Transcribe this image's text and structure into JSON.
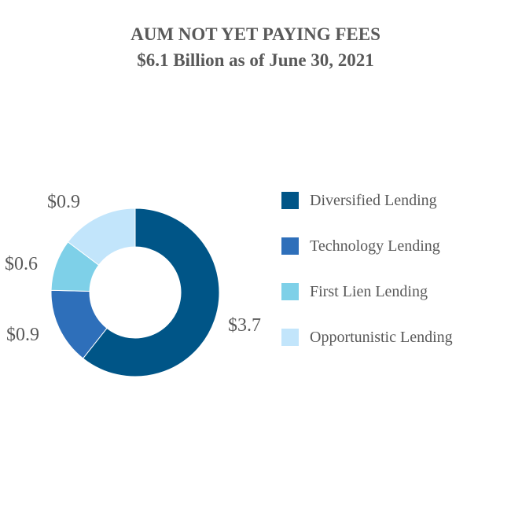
{
  "chart_data": {
    "type": "pie",
    "subtype": "donut",
    "title": "AUM NOT YET PAYING FEES",
    "subtitle": "$6.1 Billion as of June 30, 2021",
    "categories": [
      "Diversified Lending",
      "Technology Lending",
      "First Lien Lending",
      "Opportunistic Lending"
    ],
    "values": [
      3.7,
      0.9,
      0.6,
      0.9
    ],
    "data_labels": [
      "$3.7",
      "$0.9",
      "$0.6",
      "$0.9"
    ],
    "colors": [
      "#005587",
      "#2E6FBA",
      "#7ED0E8",
      "#C2E5FB"
    ],
    "legend_position": "right",
    "grid": false
  }
}
